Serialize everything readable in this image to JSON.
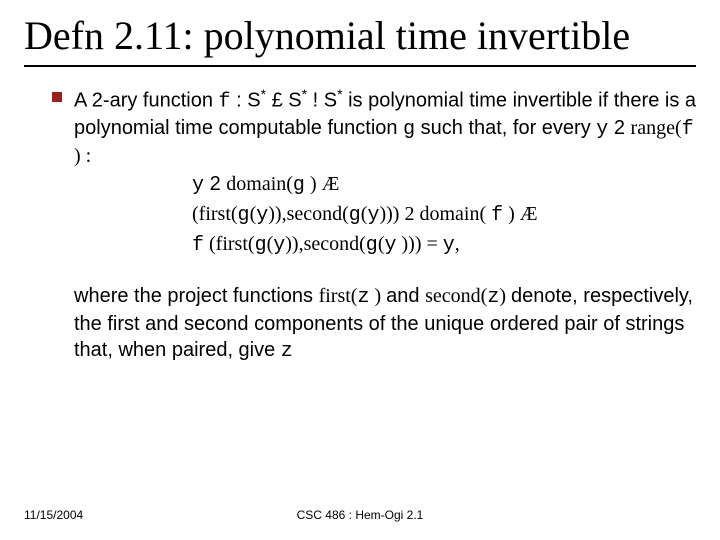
{
  "title": "Defn 2.11: polynomial time invertible",
  "para1_pre": "A 2-ary function ",
  "para1_f": "f",
  "para1_mid1": " : S",
  "para1_star": "*",
  "para1_mid2": " £ S",
  "para1_mid3": " ! S",
  "para1_post": " is polynomial time invertible if there is a polynomial time computable function ",
  "para1_g": "g",
  "para1_post2": " such that, for every ",
  "para1_y": "y",
  "para1_in": " 2 ",
  "para1_range": "range(",
  "para1_f2": "f",
  "para1_rangeclose": " ) :",
  "line1_a": "y",
  "line1_b": " 2 ",
  "line1_c": "domain(",
  "line1_d": "g",
  "line1_e": " ) Æ",
  "line2_a": "(first(",
  "line2_b": "g",
  "line2_c": "(",
  "line2_d": "y",
  "line2_e": ")),",
  "line2_f": "second(",
  "line2_g": "g",
  "line2_h": "(",
  "line2_i": "y",
  "line2_j": "))) 2 ",
  "line2_k": "domain( ",
  "line2_l": "f",
  "line2_m": "  ) Æ",
  "line3_a": "f",
  "line3_b": " (first(",
  "line3_c": "g",
  "line3_d": "(",
  "line3_e": "y",
  "line3_f": ")),",
  "line3_g": "second(",
  "line3_h": "g",
  "line3_i": "(",
  "line3_j": "y",
  "line3_k": " ))) = ",
  "line3_l": "y",
  "line3_m": ",",
  "para2_a": "where the project functions ",
  "para2_b": "first(",
  "para2_c": "z",
  "para2_d": " ) ",
  "para2_e": "and ",
  "para2_f": "second(",
  "para2_g": "z",
  "para2_h": ") ",
  "para2_i": "denote, respectively, the first and second components of the unique ordered pair of strings that, when paired, give ",
  "para2_j": "z",
  "footer_left": "11/15/2004",
  "footer_center": "CSC 486 : Hem-Ogi 2.1"
}
